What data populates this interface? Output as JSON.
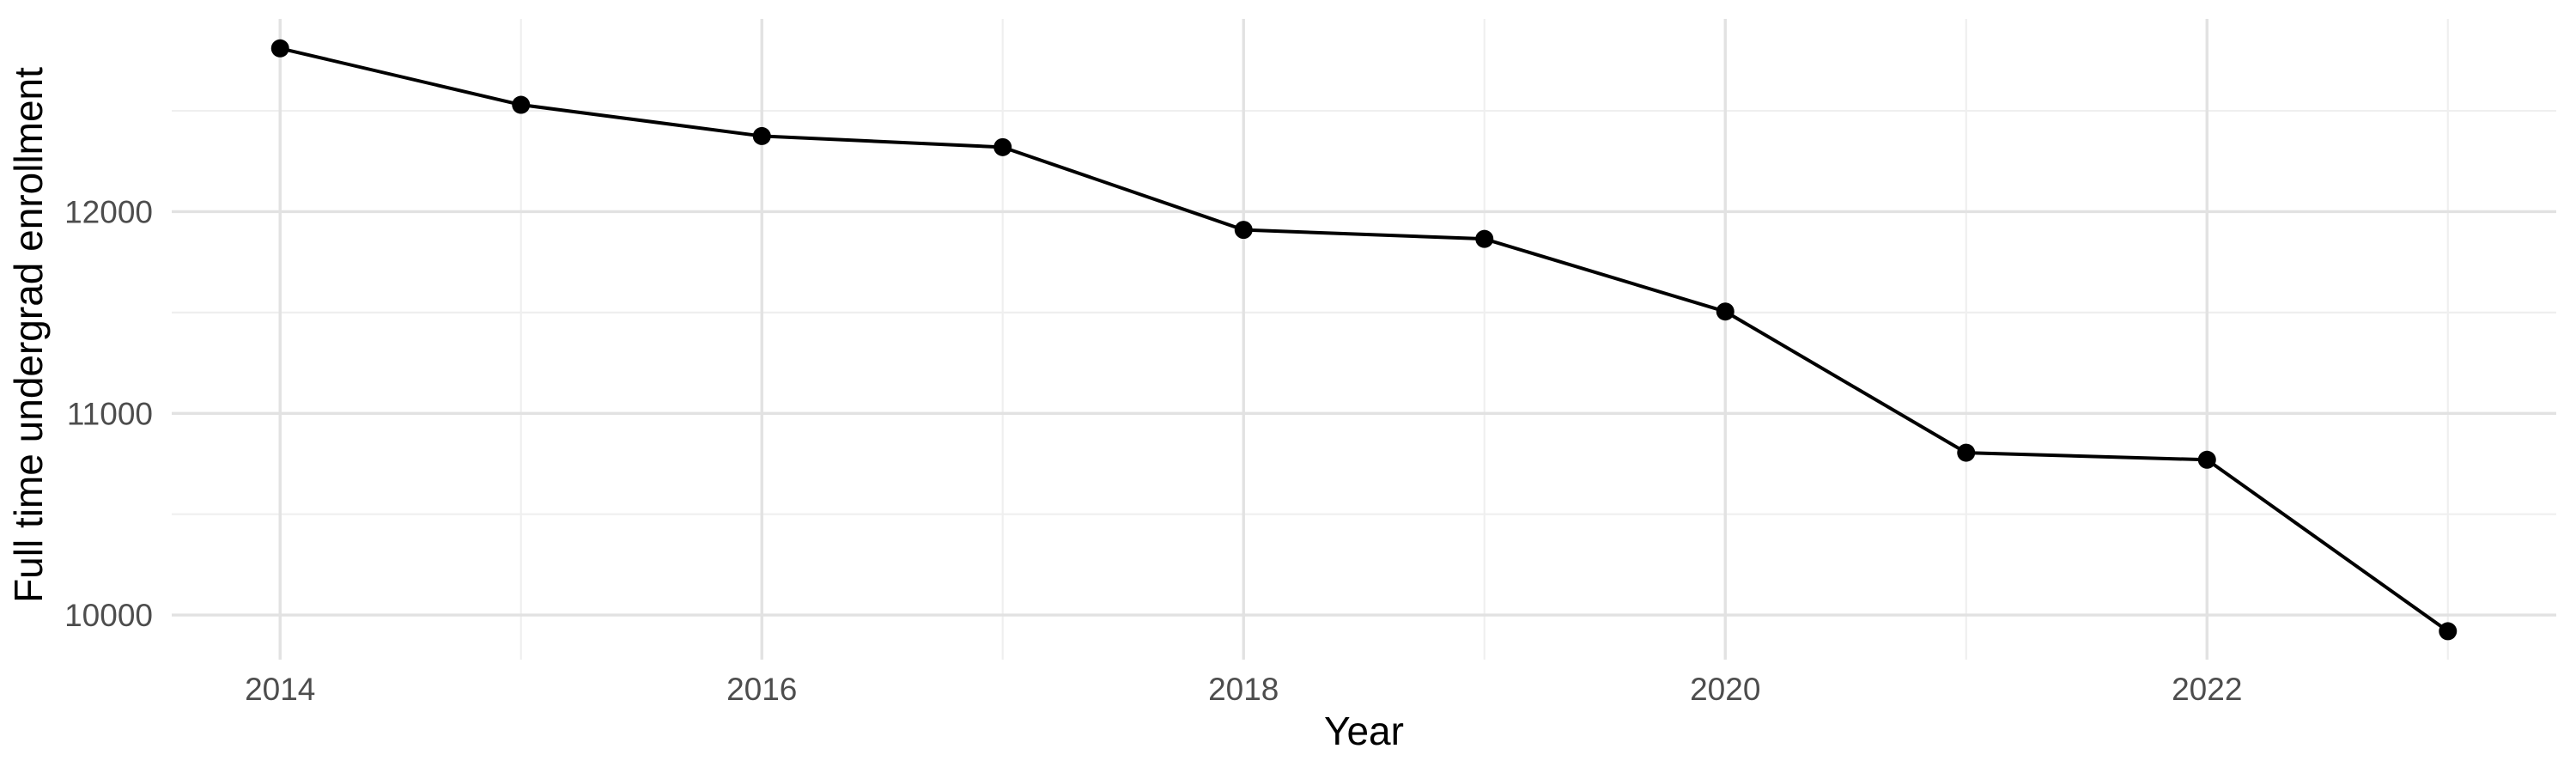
{
  "chart_data": {
    "type": "line",
    "title": "",
    "xlabel": "Year",
    "ylabel": "Full time undergrad enrollment",
    "series_name": "Full time undergrad enrollment",
    "x": [
      2014,
      2015,
      2016,
      2017,
      2018,
      2019,
      2020,
      2021,
      2022,
      2023
    ],
    "values": [
      12810,
      12530,
      12375,
      12320,
      11910,
      11865,
      11505,
      10805,
      10770,
      9920
    ],
    "x_ticks": [
      2014,
      2016,
      2018,
      2020,
      2022
    ],
    "x_tick_labels": [
      "2014",
      "2016",
      "2018",
      "2020",
      "2022"
    ],
    "x_minor_ticks": [
      2015,
      2017,
      2019,
      2021,
      2023
    ],
    "y_ticks": [
      10000,
      11000,
      12000
    ],
    "y_tick_labels": [
      "10000",
      "11000",
      "12000"
    ],
    "y_minor_ticks": [
      10500,
      11500,
      12500
    ],
    "xlim": [
      2013.55,
      2023.45
    ],
    "ylim": [
      9779,
      12956
    ],
    "grid": "major+minor, horizontal and vertical, no axis lines",
    "legend": "none",
    "marker": "filled-circle",
    "line_style": "solid",
    "colors": {
      "line": "#000000",
      "point": "#000000",
      "grid_major": "#e2e2e2",
      "grid_minor": "#efefef",
      "tick_label": "#4d4d4d",
      "axis_title": "#000000",
      "background": "#ffffff"
    }
  }
}
